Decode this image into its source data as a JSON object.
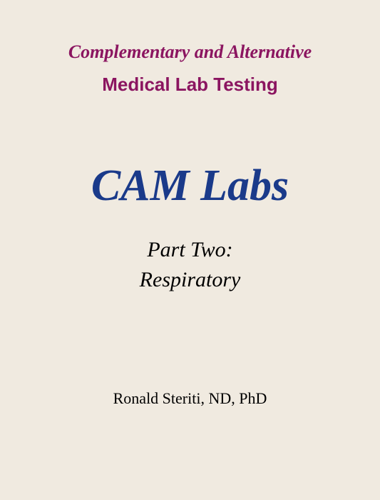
{
  "cover": {
    "header_line1": "Complementary and Alternative",
    "header_line2": "Medical Lab Testing",
    "main_title": "CAM Labs",
    "subtitle_line1": "Part Two:",
    "subtitle_line2": "Respiratory",
    "author": "Ronald Steriti, ND, PhD",
    "colors": {
      "background": "#f0eae0",
      "header_text": "#8b1560",
      "title_text": "#1a3a8a",
      "body_text": "#000000"
    },
    "typography": {
      "header_line1_fontsize": 26,
      "header_line1_style": "italic bold serif",
      "header_line2_fontsize": 26,
      "header_line2_style": "bold sans-serif",
      "main_title_fontsize": 62,
      "main_title_style": "italic bold serif",
      "subtitle_fontsize": 30,
      "subtitle_style": "italic serif",
      "author_fontsize": 22,
      "author_style": "normal serif"
    }
  }
}
